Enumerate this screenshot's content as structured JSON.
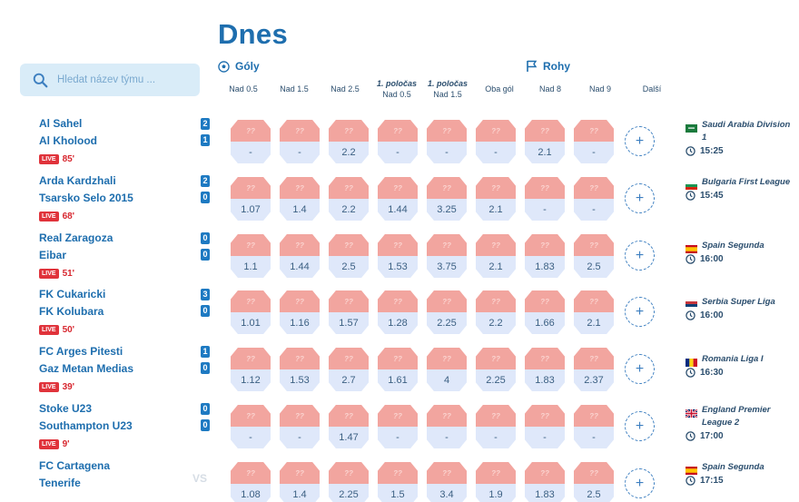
{
  "page": {
    "title": "Dnes"
  },
  "search": {
    "placeholder": "Hledat název týmu ..."
  },
  "groups": {
    "goals": "Góly",
    "corners": "Rohy"
  },
  "columns": [
    {
      "top": "",
      "bottom": "Nad 0.5"
    },
    {
      "top": "",
      "bottom": "Nad 1.5"
    },
    {
      "top": "",
      "bottom": "Nad 2.5"
    },
    {
      "top": "1. poločas",
      "bottom": "Nad 0.5"
    },
    {
      "top": "1. poločas",
      "bottom": "Nad 1.5"
    },
    {
      "top": "",
      "bottom": "Oba gól"
    },
    {
      "top": "",
      "bottom": "Nad 8"
    },
    {
      "top": "",
      "bottom": "Nad 9"
    },
    {
      "top": "",
      "bottom": "Další"
    }
  ],
  "odd_placeholder": "??",
  "more_label": "+",
  "matches": [
    {
      "home": "Al Sahel",
      "away": "Al Kholood",
      "score_home": "2",
      "score_away": "1",
      "live": "LIVE",
      "minute": "85'",
      "odds": [
        "-",
        "-",
        "2.2",
        "-",
        "-",
        "-",
        "2.1",
        "-"
      ],
      "league": "Saudi Arabia Division 1",
      "time": "15:25",
      "flag": "saudi"
    },
    {
      "home": "Arda Kardzhali",
      "away": "Tsarsko Selo 2015",
      "score_home": "2",
      "score_away": "0",
      "live": "LIVE",
      "minute": "68'",
      "odds": [
        "1.07",
        "1.4",
        "2.2",
        "1.44",
        "3.25",
        "2.1",
        "-",
        "-"
      ],
      "league": "Bulgaria First League",
      "time": "15:45",
      "flag": "bulgaria"
    },
    {
      "home": "Real Zaragoza",
      "away": "Eibar",
      "score_home": "0",
      "score_away": "0",
      "live": "LIVE",
      "minute": "51'",
      "odds": [
        "1.1",
        "1.44",
        "2.5",
        "1.53",
        "3.75",
        "2.1",
        "1.83",
        "2.5"
      ],
      "league": "Spain Segunda",
      "time": "16:00",
      "flag": "spain"
    },
    {
      "home": "FK Cukaricki",
      "away": "FK Kolubara",
      "score_home": "3",
      "score_away": "0",
      "live": "LIVE",
      "minute": "50'",
      "odds": [
        "1.01",
        "1.16",
        "1.57",
        "1.28",
        "2.25",
        "2.2",
        "1.66",
        "2.1"
      ],
      "league": "Serbia Super Liga",
      "time": "16:00",
      "flag": "serbia"
    },
    {
      "home": "FC Arges Pitesti",
      "away": "Gaz Metan Medias",
      "score_home": "1",
      "score_away": "0",
      "live": "LIVE",
      "minute": "39'",
      "odds": [
        "1.12",
        "1.53",
        "2.7",
        "1.61",
        "4",
        "2.25",
        "1.83",
        "2.37"
      ],
      "league": "Romania Liga I",
      "time": "16:30",
      "flag": "romania"
    },
    {
      "home": "Stoke U23",
      "away": "Southampton U23",
      "score_home": "0",
      "score_away": "0",
      "live": "LIVE",
      "minute": "9'",
      "odds": [
        "-",
        "-",
        "1.47",
        "-",
        "-",
        "-",
        "-",
        "-"
      ],
      "league": "England Premier League 2",
      "time": "17:00",
      "flag": "england"
    },
    {
      "home": "FC Cartagena",
      "away": "Tenerife",
      "score_home": "",
      "score_away": "",
      "vs": "VS",
      "live": "",
      "minute": "",
      "odds": [
        "1.08",
        "1.4",
        "2.25",
        "1.5",
        "3.4",
        "1.9",
        "1.83",
        "2.5"
      ],
      "league": "Spain Segunda",
      "time": "17:15",
      "flag": "spain"
    }
  ],
  "colors": {
    "accent": "#1e6eae",
    "live": "#e0333b",
    "odd_top": "#f2a59f",
    "odd_bottom": "#dfe8fa"
  }
}
